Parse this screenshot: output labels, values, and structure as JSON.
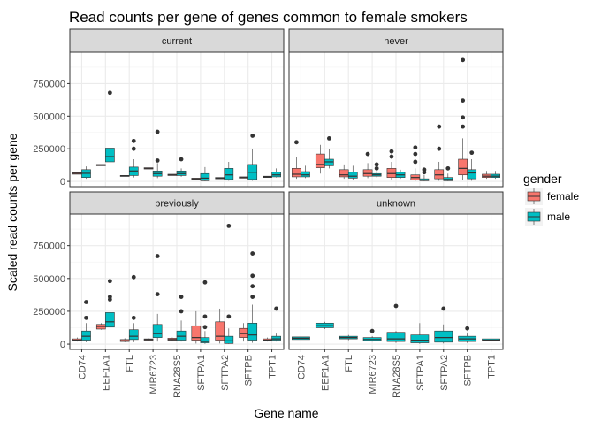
{
  "chart_data": {
    "type": "boxplot",
    "title": "Read counts per gene of genes common to female smokers",
    "xlabel": "Gene name",
    "ylabel": "Scaled read counts per gene",
    "categories": [
      "CD74",
      "EEF1A1",
      "FTL",
      "MIR6723",
      "RNA28S5",
      "SFTPA1",
      "SFTPA2",
      "SFTPB",
      "TPT1"
    ],
    "y_ticks": [
      0,
      250000,
      500000,
      750000
    ],
    "y_tick_labels": [
      "0",
      "250000",
      "500000",
      "750000"
    ],
    "ylim": [
      -40000,
      990000
    ],
    "grid": true,
    "legend": {
      "title": "gender",
      "placement": "right",
      "entries": [
        {
          "name": "female",
          "color": "#F8766D"
        },
        {
          "name": "male",
          "color": "#00BFC4"
        }
      ]
    },
    "facets": [
      {
        "label": "current",
        "boxes": [
          {
            "gene": "CD74",
            "gender": "female",
            "q1": 55000,
            "median": 62000,
            "q3": 68000,
            "lower": 55000,
            "upper": 68000,
            "outliers": []
          },
          {
            "gene": "CD74",
            "gender": "male",
            "q1": 30000,
            "median": 62000,
            "q3": 90000,
            "lower": 20000,
            "upper": 115000,
            "outliers": []
          },
          {
            "gene": "EEF1A1",
            "gender": "female",
            "q1": 120000,
            "median": 125000,
            "q3": 130000,
            "lower": 120000,
            "upper": 130000,
            "outliers": []
          },
          {
            "gene": "EEF1A1",
            "gender": "male",
            "q1": 150000,
            "median": 190000,
            "q3": 255000,
            "lower": 90000,
            "upper": 320000,
            "outliers": [
              680000
            ]
          },
          {
            "gene": "FTL",
            "gender": "female",
            "q1": 38000,
            "median": 42000,
            "q3": 46000,
            "lower": 38000,
            "upper": 46000,
            "outliers": []
          },
          {
            "gene": "FTL",
            "gender": "male",
            "q1": 45000,
            "median": 80000,
            "q3": 110000,
            "lower": 30000,
            "upper": 170000,
            "outliers": [
              310000,
              250000
            ]
          },
          {
            "gene": "MIR6723",
            "gender": "female",
            "q1": 95000,
            "median": 100000,
            "q3": 105000,
            "lower": 95000,
            "upper": 105000,
            "outliers": []
          },
          {
            "gene": "MIR6723",
            "gender": "male",
            "q1": 40000,
            "median": 60000,
            "q3": 80000,
            "lower": 25000,
            "upper": 140000,
            "outliers": [
              380000,
              160000
            ]
          },
          {
            "gene": "RNA28S5",
            "gender": "female",
            "q1": 45000,
            "median": 50000,
            "q3": 55000,
            "lower": 45000,
            "upper": 55000,
            "outliers": []
          },
          {
            "gene": "RNA28S5",
            "gender": "male",
            "q1": 45000,
            "median": 60000,
            "q3": 80000,
            "lower": 35000,
            "upper": 100000,
            "outliers": [
              170000
            ]
          },
          {
            "gene": "SFTPA1",
            "gender": "female",
            "q1": 15000,
            "median": 20000,
            "q3": 25000,
            "lower": 15000,
            "upper": 25000,
            "outliers": []
          },
          {
            "gene": "SFTPA1",
            "gender": "male",
            "q1": 5000,
            "median": 25000,
            "q3": 60000,
            "lower": 2000,
            "upper": 110000,
            "outliers": []
          },
          {
            "gene": "SFTPA2",
            "gender": "female",
            "q1": 20000,
            "median": 25000,
            "q3": 30000,
            "lower": 20000,
            "upper": 30000,
            "outliers": []
          },
          {
            "gene": "SFTPA2",
            "gender": "male",
            "q1": 15000,
            "median": 50000,
            "q3": 100000,
            "lower": 5000,
            "upper": 150000,
            "outliers": []
          },
          {
            "gene": "SFTPB",
            "gender": "female",
            "q1": 25000,
            "median": 30000,
            "q3": 35000,
            "lower": 25000,
            "upper": 35000,
            "outliers": []
          },
          {
            "gene": "SFTPB",
            "gender": "male",
            "q1": 15000,
            "median": 70000,
            "q3": 130000,
            "lower": 5000,
            "upper": 250000,
            "outliers": [
              350000
            ]
          },
          {
            "gene": "TPT1",
            "gender": "female",
            "q1": 30000,
            "median": 35000,
            "q3": 40000,
            "lower": 30000,
            "upper": 40000,
            "outliers": []
          },
          {
            "gene": "TPT1",
            "gender": "male",
            "q1": 35000,
            "median": 50000,
            "q3": 70000,
            "lower": 30000,
            "upper": 100000,
            "outliers": []
          }
        ]
      },
      {
        "label": "never",
        "boxes": [
          {
            "gene": "CD74",
            "gender": "female",
            "q1": 35000,
            "median": 55000,
            "q3": 100000,
            "lower": 20000,
            "upper": 190000,
            "outliers": [
              300000
            ]
          },
          {
            "gene": "CD74",
            "gender": "male",
            "q1": 35000,
            "median": 50000,
            "q3": 75000,
            "lower": 25000,
            "upper": 120000,
            "outliers": []
          },
          {
            "gene": "EEF1A1",
            "gender": "female",
            "q1": 105000,
            "median": 130000,
            "q3": 210000,
            "lower": 60000,
            "upper": 280000,
            "outliers": []
          },
          {
            "gene": "EEF1A1",
            "gender": "male",
            "q1": 120000,
            "median": 150000,
            "q3": 170000,
            "lower": 100000,
            "upper": 250000,
            "outliers": [
              330000
            ]
          },
          {
            "gene": "FTL",
            "gender": "female",
            "q1": 35000,
            "median": 50000,
            "q3": 90000,
            "lower": 20000,
            "upper": 130000,
            "outliers": []
          },
          {
            "gene": "FTL",
            "gender": "male",
            "q1": 25000,
            "median": 40000,
            "q3": 70000,
            "lower": 10000,
            "upper": 120000,
            "outliers": []
          },
          {
            "gene": "MIR6723",
            "gender": "female",
            "q1": 40000,
            "median": 60000,
            "q3": 90000,
            "lower": 25000,
            "upper": 140000,
            "outliers": [
              210000
            ]
          },
          {
            "gene": "MIR6723",
            "gender": "male",
            "q1": 40000,
            "median": 50000,
            "q3": 60000,
            "lower": 30000,
            "upper": 80000,
            "outliers": [
              130000,
              100000
            ]
          },
          {
            "gene": "RNA28S5",
            "gender": "female",
            "q1": 30000,
            "median": 60000,
            "q3": 100000,
            "lower": 15000,
            "upper": 150000,
            "outliers": [
              230000,
              190000
            ]
          },
          {
            "gene": "RNA28S5",
            "gender": "male",
            "q1": 30000,
            "median": 50000,
            "q3": 70000,
            "lower": 20000,
            "upper": 90000,
            "outliers": []
          },
          {
            "gene": "SFTPA1",
            "gender": "female",
            "q1": 10000,
            "median": 30000,
            "q3": 50000,
            "lower": 2000,
            "upper": 100000,
            "outliers": [
              260000,
              210000,
              150000
            ]
          },
          {
            "gene": "SFTPA1",
            "gender": "male",
            "q1": 5000,
            "median": 10000,
            "q3": 20000,
            "lower": 2000,
            "upper": 50000,
            "outliers": [
              90000,
              70000
            ]
          },
          {
            "gene": "SFTPA2",
            "gender": "female",
            "q1": 20000,
            "median": 50000,
            "q3": 90000,
            "lower": 5000,
            "upper": 150000,
            "outliers": [
              420000,
              250000
            ]
          },
          {
            "gene": "SFTPA2",
            "gender": "male",
            "q1": 5000,
            "median": 15000,
            "q3": 30000,
            "lower": 2000,
            "upper": 60000,
            "outliers": [
              100000
            ]
          },
          {
            "gene": "SFTPB",
            "gender": "female",
            "q1": 50000,
            "median": 100000,
            "q3": 170000,
            "lower": 10000,
            "upper": 330000,
            "outliers": [
              930000,
              620000,
              490000,
              420000
            ]
          },
          {
            "gene": "SFTPB",
            "gender": "male",
            "q1": 20000,
            "median": 65000,
            "q3": 90000,
            "lower": 5000,
            "upper": 170000,
            "outliers": [
              220000
            ]
          },
          {
            "gene": "TPT1",
            "gender": "female",
            "q1": 30000,
            "median": 40000,
            "q3": 55000,
            "lower": 20000,
            "upper": 80000,
            "outliers": []
          },
          {
            "gene": "TPT1",
            "gender": "male",
            "q1": 30000,
            "median": 40000,
            "q3": 55000,
            "lower": 20000,
            "upper": 80000,
            "outliers": []
          }
        ]
      },
      {
        "label": "previously",
        "boxes": [
          {
            "gene": "CD74",
            "gender": "female",
            "q1": 25000,
            "median": 30000,
            "q3": 40000,
            "lower": 20000,
            "upper": 50000,
            "outliers": []
          },
          {
            "gene": "CD74",
            "gender": "male",
            "q1": 30000,
            "median": 60000,
            "q3": 100000,
            "lower": 15000,
            "upper": 160000,
            "outliers": [
              320000,
              200000
            ]
          },
          {
            "gene": "EEF1A1",
            "gender": "female",
            "q1": 115000,
            "median": 135000,
            "q3": 150000,
            "lower": 110000,
            "upper": 160000,
            "outliers": []
          },
          {
            "gene": "EEF1A1",
            "gender": "male",
            "q1": 130000,
            "median": 170000,
            "q3": 240000,
            "lower": 100000,
            "upper": 330000,
            "outliers": [
              480000,
              360000,
              340000
            ]
          },
          {
            "gene": "FTL",
            "gender": "female",
            "q1": 20000,
            "median": 25000,
            "q3": 35000,
            "lower": 15000,
            "upper": 45000,
            "outliers": []
          },
          {
            "gene": "FTL",
            "gender": "male",
            "q1": 35000,
            "median": 60000,
            "q3": 110000,
            "lower": 15000,
            "upper": 160000,
            "outliers": [
              510000,
              200000
            ]
          },
          {
            "gene": "MIR6723",
            "gender": "female",
            "q1": 30000,
            "median": 35000,
            "q3": 40000,
            "lower": 25000,
            "upper": 45000,
            "outliers": []
          },
          {
            "gene": "MIR6723",
            "gender": "male",
            "q1": 50000,
            "median": 80000,
            "q3": 150000,
            "lower": 20000,
            "upper": 230000,
            "outliers": [
              670000,
              380000
            ]
          },
          {
            "gene": "RNA28S5",
            "gender": "female",
            "q1": 30000,
            "median": 35000,
            "q3": 45000,
            "lower": 25000,
            "upper": 50000,
            "outliers": []
          },
          {
            "gene": "RNA28S5",
            "gender": "male",
            "q1": 30000,
            "median": 60000,
            "q3": 100000,
            "lower": 20000,
            "upper": 180000,
            "outliers": [
              360000,
              250000
            ]
          },
          {
            "gene": "SFTPA1",
            "gender": "female",
            "q1": 30000,
            "median": 50000,
            "q3": 140000,
            "lower": 5000,
            "upper": 250000,
            "outliers": []
          },
          {
            "gene": "SFTPA1",
            "gender": "male",
            "q1": 10000,
            "median": 20000,
            "q3": 50000,
            "lower": 2000,
            "upper": 100000,
            "outliers": [
              470000,
              210000,
              130000
            ]
          },
          {
            "gene": "SFTPA2",
            "gender": "female",
            "q1": 30000,
            "median": 60000,
            "q3": 170000,
            "lower": 5000,
            "upper": 270000,
            "outliers": []
          },
          {
            "gene": "SFTPA2",
            "gender": "male",
            "q1": 5000,
            "median": 25000,
            "q3": 60000,
            "lower": 2000,
            "upper": 120000,
            "outliers": [
              900000,
              210000
            ]
          },
          {
            "gene": "SFTPB",
            "gender": "female",
            "q1": 50000,
            "median": 80000,
            "q3": 120000,
            "lower": 20000,
            "upper": 160000,
            "outliers": []
          },
          {
            "gene": "SFTPB",
            "gender": "male",
            "q1": 30000,
            "median": 70000,
            "q3": 160000,
            "lower": 10000,
            "upper": 300000,
            "outliers": [
              690000,
              520000,
              440000,
              360000
            ]
          },
          {
            "gene": "TPT1",
            "gender": "female",
            "q1": 25000,
            "median": 30000,
            "q3": 40000,
            "lower": 20000,
            "upper": 50000,
            "outliers": []
          },
          {
            "gene": "TPT1",
            "gender": "male",
            "q1": 30000,
            "median": 40000,
            "q3": 60000,
            "lower": 20000,
            "upper": 80000,
            "outliers": [
              270000
            ]
          }
        ]
      },
      {
        "label": "unknown",
        "boxes": [
          {
            "gene": "CD74",
            "gender": "male",
            "q1": 35000,
            "median": 45000,
            "q3": 55000,
            "lower": 30000,
            "upper": 60000,
            "outliers": []
          },
          {
            "gene": "EEF1A1",
            "gender": "male",
            "q1": 125000,
            "median": 140000,
            "q3": 160000,
            "lower": 115000,
            "upper": 170000,
            "outliers": []
          },
          {
            "gene": "FTL",
            "gender": "male",
            "q1": 40000,
            "median": 50000,
            "q3": 60000,
            "lower": 30000,
            "upper": 70000,
            "outliers": []
          },
          {
            "gene": "MIR6723",
            "gender": "male",
            "q1": 25000,
            "median": 35000,
            "q3": 50000,
            "lower": 20000,
            "upper": 60000,
            "outliers": [
              100000
            ]
          },
          {
            "gene": "RNA28S5",
            "gender": "male",
            "q1": 20000,
            "median": 40000,
            "q3": 90000,
            "lower": 10000,
            "upper": 100000,
            "outliers": [
              290000
            ]
          },
          {
            "gene": "SFTPA1",
            "gender": "male",
            "q1": 10000,
            "median": 30000,
            "q3": 70000,
            "lower": 2000,
            "upper": 160000,
            "outliers": []
          },
          {
            "gene": "SFTPA2",
            "gender": "male",
            "q1": 15000,
            "median": 50000,
            "q3": 100000,
            "lower": 5000,
            "upper": 150000,
            "outliers": [
              270000
            ]
          },
          {
            "gene": "SFTPB",
            "gender": "male",
            "q1": 20000,
            "median": 40000,
            "q3": 60000,
            "lower": 10000,
            "upper": 80000,
            "outliers": [
              120000
            ]
          },
          {
            "gene": "TPT1",
            "gender": "male",
            "q1": 25000,
            "median": 30000,
            "q3": 40000,
            "lower": 20000,
            "upper": 45000,
            "outliers": []
          }
        ]
      }
    ]
  }
}
